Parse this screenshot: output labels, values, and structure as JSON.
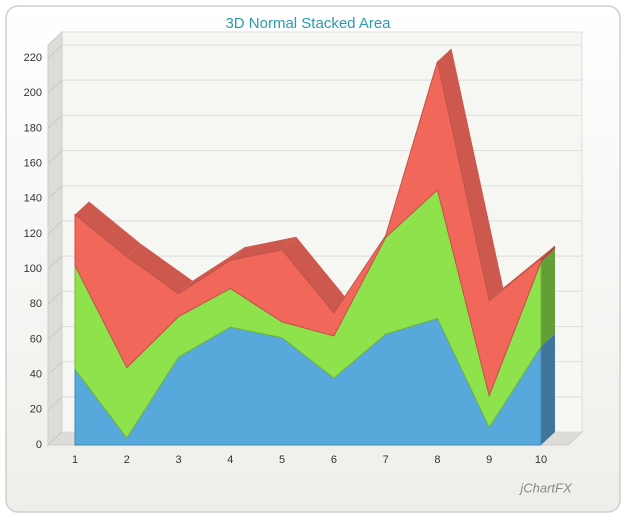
{
  "chart_data": {
    "type": "stacked_area_3d",
    "title": "3D Normal Stacked Area",
    "categories": [
      "1",
      "2",
      "3",
      "4",
      "5",
      "6",
      "7",
      "8",
      "9",
      "10"
    ],
    "series": [
      {
        "color": "#57a9dc",
        "values": [
          43,
          4,
          50,
          67,
          61,
          38,
          63,
          72,
          10,
          56
        ]
      },
      {
        "color": "#8ee34c",
        "values": [
          59,
          40,
          23,
          22,
          9,
          24,
          55,
          73,
          18,
          48
        ]
      },
      {
        "color": "#f1685a",
        "values": [
          29,
          63,
          13,
          16,
          41,
          13,
          1,
          73,
          54,
          2
        ]
      }
    ],
    "ylim": [
      0,
      220
    ],
    "yticks": [
      0,
      20,
      40,
      60,
      80,
      100,
      120,
      140,
      160,
      180,
      200,
      220
    ],
    "grid": true,
    "watermark": "jChartFX"
  }
}
